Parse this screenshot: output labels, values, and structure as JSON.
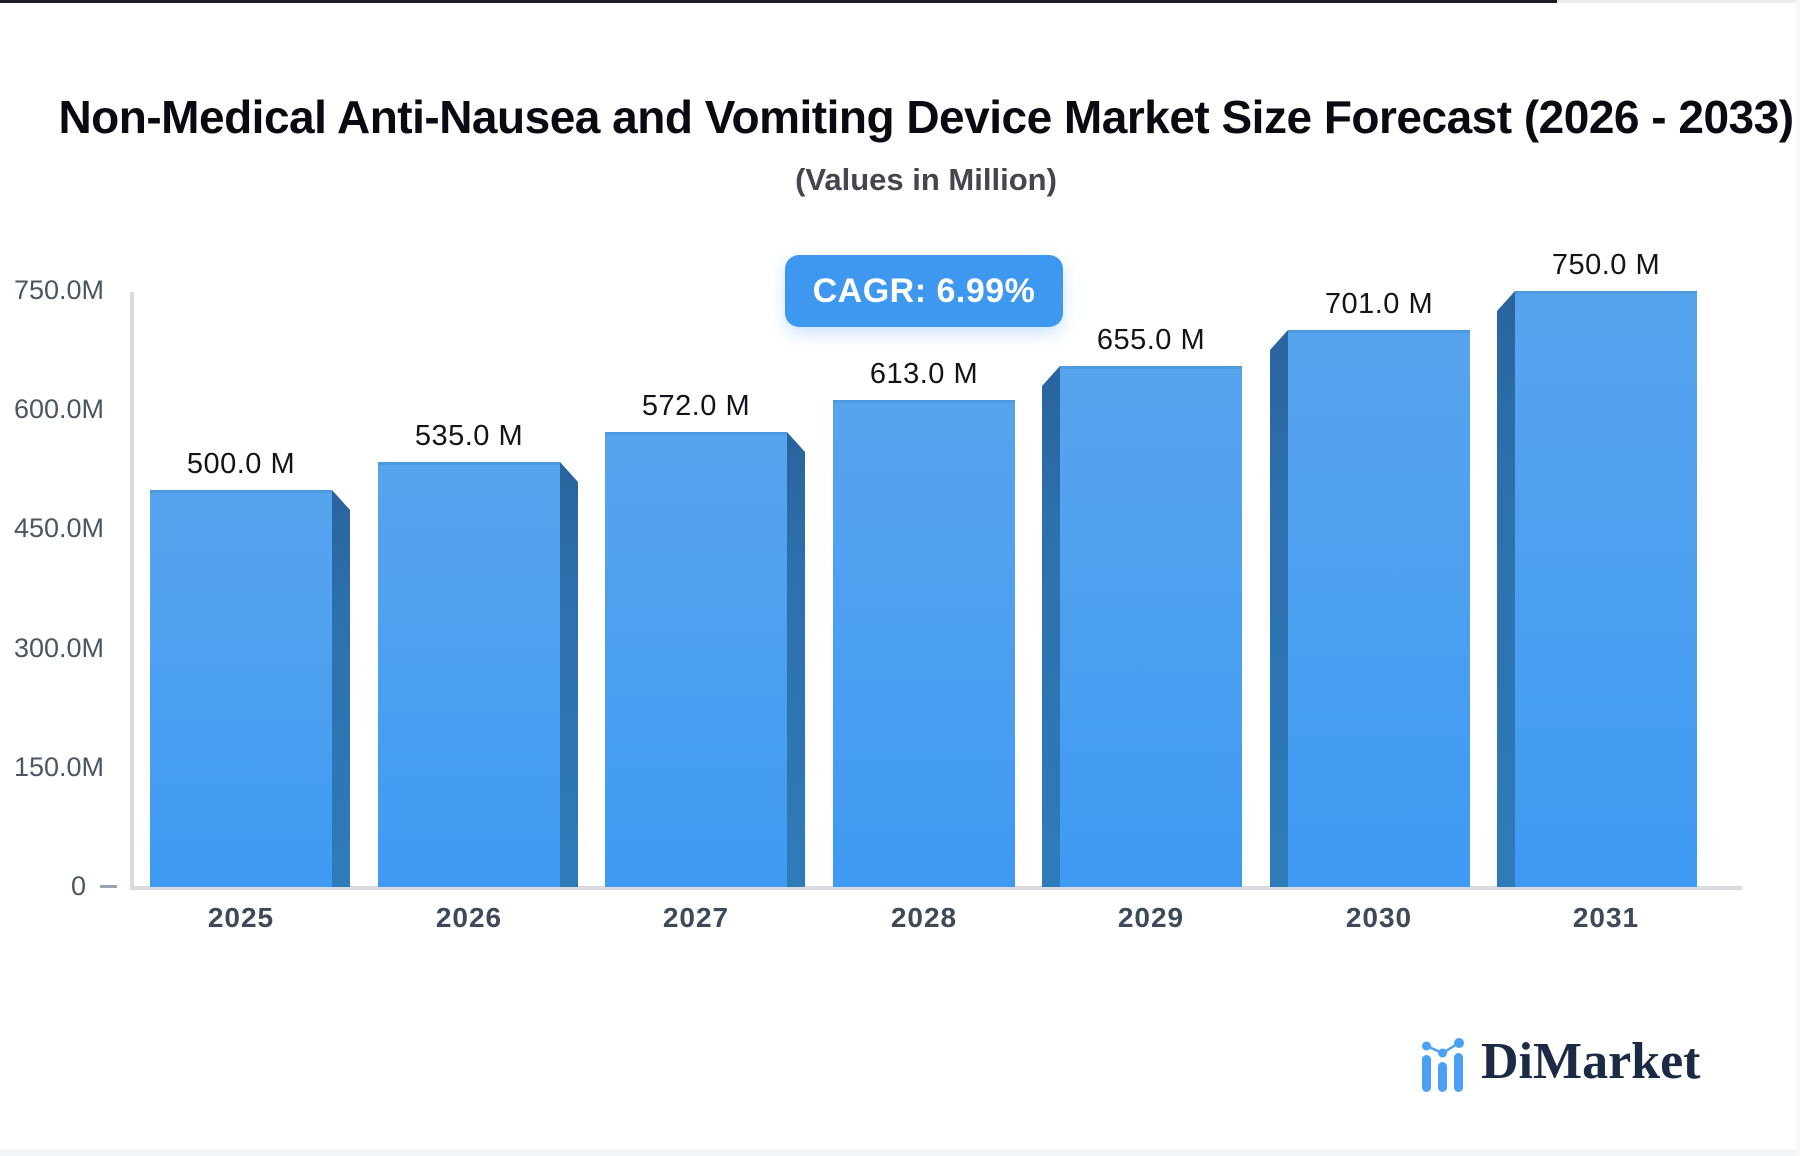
{
  "title": "Non-Medical Anti-Nausea and Vomiting Device Market Size Forecast (2026 - 2033)",
  "subtitle": "(Values in Million)",
  "badge": {
    "label": "CAGR: 6.99%",
    "color": "#3e98f0"
  },
  "logo": {
    "text": "DiMarket",
    "icon": "bar-chart-logo-icon",
    "icon_color": "#4aa0f5",
    "text_color": "#1b2b45"
  },
  "chart_data": {
    "type": "bar",
    "title": "Non-Medical Anti-Nausea and Vomiting Device Market Size Forecast (2026 - 2033)",
    "subtitle": "(Values in Million)",
    "cagr_percent": 6.99,
    "categories": [
      "2025",
      "2026",
      "2027",
      "2028",
      "2029",
      "2030",
      "2031"
    ],
    "values": [
      500,
      535,
      572,
      613,
      655,
      701,
      750
    ],
    "bar_labels": [
      "500.0 M",
      "535.0 M",
      "572.0 M",
      "613.0 M",
      "655.0 M",
      "701.0 M",
      "750.0 M"
    ],
    "unit": "Million",
    "xlabel": "",
    "ylabel": "",
    "ylim": [
      0,
      750
    ],
    "y_tick_values": [
      750,
      600,
      450,
      300,
      150,
      0
    ],
    "y_ticks": [
      "750.0M",
      "600.0M",
      "450.0M",
      "300.0M",
      "150.0M",
      "0"
    ],
    "grid": false,
    "legend": "none",
    "bar_color_top": "#57a4ee",
    "bar_color_bottom": "#3e9af3",
    "bar_side_color": "#2d70ad",
    "axis_color": "#d9dbe0"
  }
}
